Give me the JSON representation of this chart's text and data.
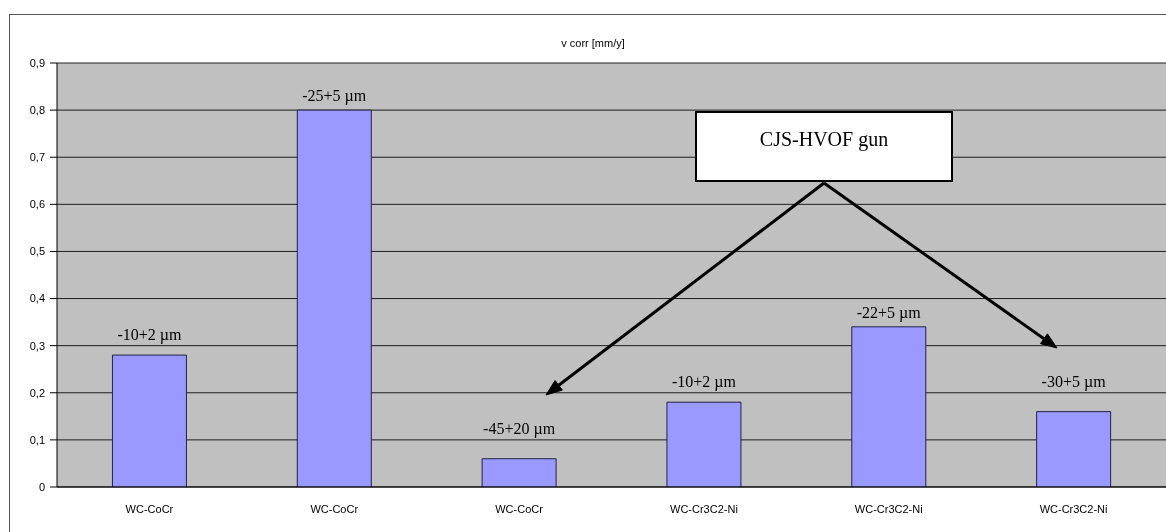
{
  "chart_data": {
    "type": "bar",
    "title": "v corr [mm/y]",
    "categories": [
      "WC-CoCr",
      "WC-CoCr",
      "WC-CoCr",
      "WC-Cr3C2-Ni",
      "WC-Cr3C2-Ni",
      "WC-Cr3C2-Ni"
    ],
    "values": [
      0.28,
      0.8,
      0.06,
      0.18,
      0.34,
      0.16
    ],
    "color": "#9999ff",
    "ylim": [
      0,
      0.9
    ],
    "yticks": [
      0,
      {
        "value": 0.1,
        "label": "0,1"
      },
      {
        "value": 0.2,
        "label": "0,2"
      },
      {
        "value": 0.3,
        "label": "0,3"
      },
      {
        "value": 0.4,
        "label": "0,4"
      },
      {
        "value": 0.5,
        "label": "0,5"
      },
      {
        "value": 0.6,
        "label": "0,6"
      },
      {
        "value": 0.7,
        "label": "0,7"
      },
      {
        "value": 0.8,
        "label": "0,8"
      },
      {
        "value": 0.9,
        "label": "0,9"
      }
    ],
    "grid": "y",
    "annotations": [
      "-10+2 µm",
      "-25+5 µm",
      "-45+20 µm",
      "-10+2 µm",
      "-22+5 µm",
      "-30+5 µm",
      "CJS-HVOF gun"
    ]
  }
}
